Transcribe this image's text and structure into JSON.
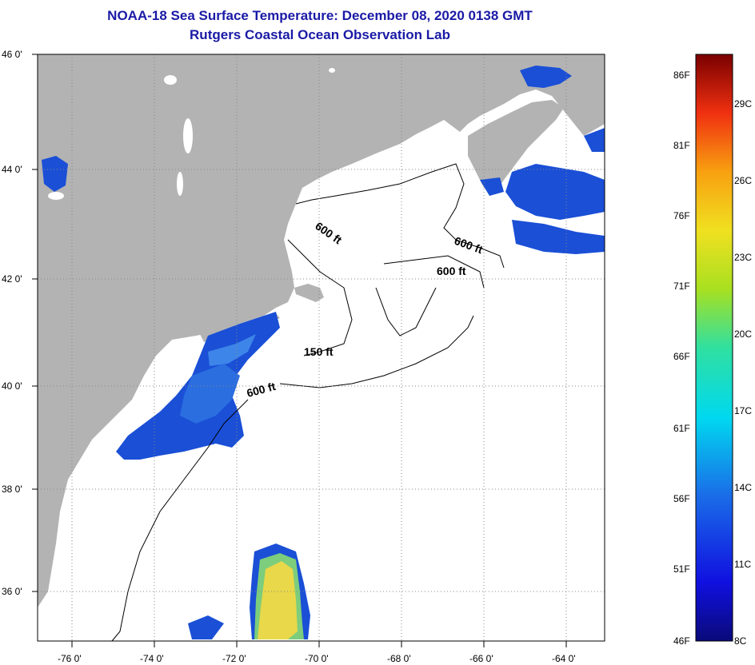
{
  "title": {
    "line1": "NOAA-18 Sea Surface Temperature:  December 08, 2020 0138 GMT",
    "line2": "Rutgers Coastal Ocean Observation Lab"
  },
  "map": {
    "lat_labels": [
      "46 0'",
      "44 0'",
      "42 0'",
      "40 0'",
      "38 0'",
      "36 0'"
    ],
    "lon_labels": [
      "-76 0'",
      "-74 0'",
      "-72 0'",
      "-70 0'",
      "-68 0'",
      "-66 0'",
      "-64 0'"
    ],
    "contour_labels": [
      "600 ft",
      "600 ft",
      "600 ft",
      "150 ft",
      "600 ft"
    ],
    "colors": {
      "land": "#b3b3b3",
      "ocean_no_data": "#ffffff",
      "cold_sst": "#1a4fd6",
      "warm_sst": "#e8d84a",
      "grid": "#888888"
    }
  },
  "legend": {
    "fahrenheit": [
      "86F",
      "81F",
      "76F",
      "71F",
      "66F",
      "61F",
      "56F",
      "51F",
      "46F"
    ],
    "celsius": [
      "29C",
      "26C",
      "23C",
      "20C",
      "17C",
      "14C",
      "11C",
      "8C"
    ],
    "range_f": [
      46,
      86
    ],
    "range_c": [
      8,
      30
    ]
  }
}
